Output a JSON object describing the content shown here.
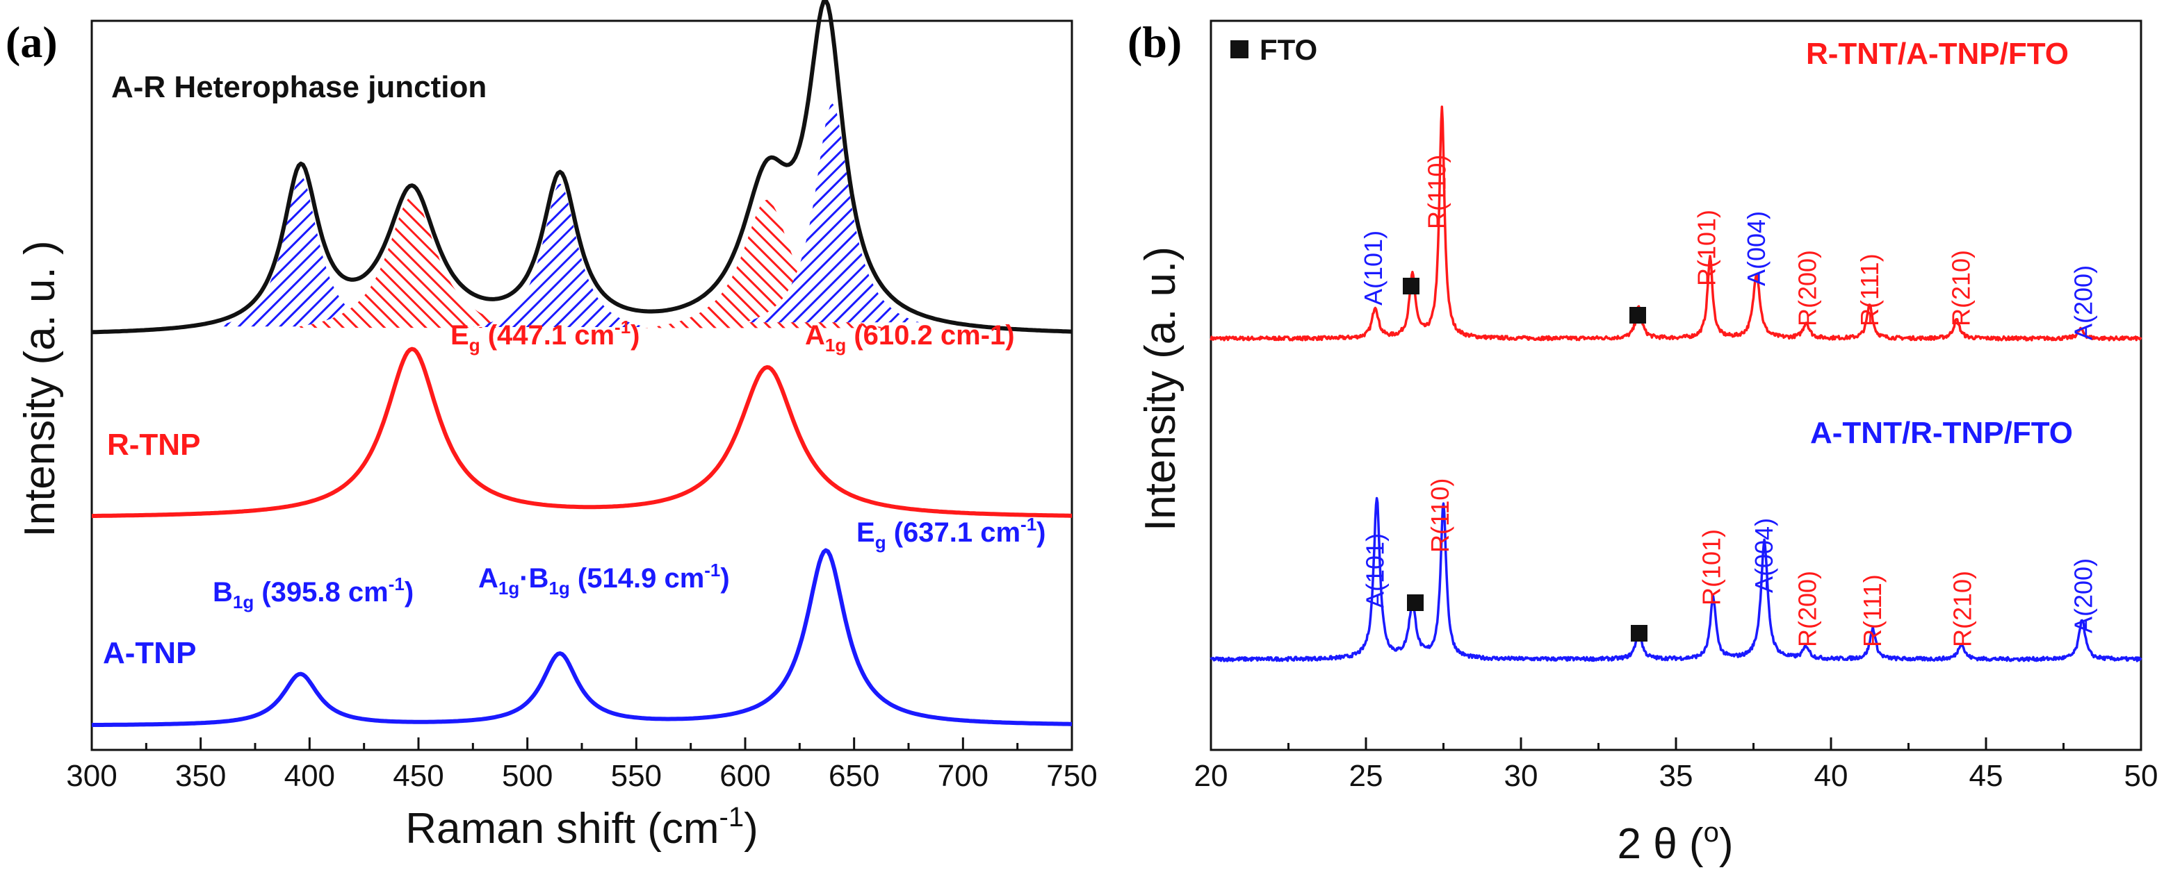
{
  "colors": {
    "black": "#111111",
    "red": "#ff1a1a",
    "blue": "#1a1aff"
  },
  "chart_data": [
    {
      "panel": "(a)",
      "type": "line",
      "title": "A-R Heterophase junction",
      "xlabel": "Raman shift (cm",
      "xlabel_sup": "-1",
      "xlabel_close": ")",
      "ylabel": "Intensity (a. u. )",
      "xlim": [
        300,
        750
      ],
      "ylim": [
        0,
        1
      ],
      "xticks": [
        "300",
        "350",
        "400",
        "450",
        "500",
        "550",
        "600",
        "650",
        "700",
        "750"
      ],
      "series": [
        {
          "name": "A-R",
          "color": "#111111",
          "peaks": [
            [
              396,
              1,
              10
            ],
            [
              447,
              0.87,
              14
            ],
            [
              515,
              0.95,
              10
            ],
            [
              610,
              0.85,
              14
            ],
            [
              637,
              1.9,
              10
            ]
          ],
          "base": 0.035,
          "offset": 0.56,
          "scale": 0.22
        },
        {
          "name": "R-TNP",
          "color": "#ff1a1a",
          "peaks": [
            [
              447.1,
              2.3,
              15
            ],
            [
              610.2,
              2.05,
              16
            ]
          ],
          "base": 0.08,
          "offset": 0.31,
          "scale": 0.1
        },
        {
          "name": "A-TNP",
          "color": "#1a1aff",
          "peaks": [
            [
              395.8,
              0.7,
              10
            ],
            [
              514.9,
              0.97,
              10
            ],
            [
              637.1,
              2.4,
              11
            ]
          ],
          "base": 0.03,
          "offset": 0.03,
          "scale": 0.1
        }
      ],
      "fills": [
        {
          "center": 396,
          "height": 1,
          "width": 10,
          "color": "#1a1aff"
        },
        {
          "center": 447,
          "height": 0.87,
          "width": 14,
          "color": "#ff1a1a"
        },
        {
          "center": 515,
          "height": 0.95,
          "width": 10,
          "color": "#1a1aff"
        },
        {
          "center": 610,
          "height": 0.85,
          "width": 14,
          "color": "#ff1a1a"
        },
        {
          "center": 640,
          "height": 1.45,
          "width": 10,
          "color": "#1a1aff"
        }
      ],
      "annotations": {
        "r_tnp": "R-TNP",
        "a_tnp": "A-TNP",
        "eg_red": {
          "main": "E",
          "sub": "g",
          "text": " (447.1 cm",
          "sup": "-1",
          "close": ")"
        },
        "a1g_red": {
          "main": "A",
          "sub": "1g",
          "text": " (610.2 cm-1)"
        },
        "b1g": {
          "main": "B",
          "sub": "1g",
          "text": " (395.8 cm",
          "sup": "-1",
          "close": ")"
        },
        "a1gb1g": {
          "main": "A",
          "sub1": "1g",
          "mid": "·B",
          "sub2": "1g",
          "text": " (514.9 cm",
          "sup": "-1",
          "close": ")"
        },
        "eg_blue": {
          "main": "E",
          "sub": "g",
          "text": " (637.1 cm",
          "sup": "-1",
          "close": ")"
        }
      }
    },
    {
      "panel": "(b)",
      "type": "line",
      "legend": "FTO",
      "xlabel": "2 θ (",
      "xlabel_sup": "o",
      "xlabel_close": ")",
      "ylabel": "Intensity (a. u.)",
      "xlim": [
        20,
        50
      ],
      "ylim": [
        0,
        1
      ],
      "xticks": [
        "20",
        "25",
        "30",
        "35",
        "40",
        "45",
        "50"
      ],
      "series": [
        {
          "name": "R-TNT/A-TNP/FTO",
          "color": "#ff1a1a",
          "offset": 0.56,
          "scale": 0.085,
          "base": 0.05,
          "peaks": [
            [
              25.3,
              0.5,
              0.12
            ],
            [
              26.5,
              1.0,
              0.12
            ],
            [
              27.45,
              3.7,
              0.1
            ],
            [
              33.8,
              0.5,
              0.12
            ],
            [
              36.1,
              1.3,
              0.1
            ],
            [
              37.6,
              1.05,
              0.13
            ],
            [
              39.2,
              0.25,
              0.12
            ],
            [
              41.25,
              0.55,
              0.11
            ],
            [
              44.05,
              0.3,
              0.12
            ],
            [
              48.05,
              0.15,
              0.12
            ]
          ]
        },
        {
          "name": "A-TNT/R-TNP/FTO",
          "color": "#1a1aff",
          "offset": 0.12,
          "scale": 0.085,
          "base": 0.05,
          "peaks": [
            [
              25.35,
              2.6,
              0.12
            ],
            [
              26.5,
              0.85,
              0.14
            ],
            [
              27.5,
              2.5,
              0.11
            ],
            [
              33.8,
              0.45,
              0.12
            ],
            [
              36.2,
              1.0,
              0.11
            ],
            [
              37.85,
              1.9,
              0.13
            ],
            [
              39.2,
              0.2,
              0.12
            ],
            [
              41.35,
              0.5,
              0.11
            ],
            [
              44.2,
              0.25,
              0.12
            ],
            [
              48.1,
              0.65,
              0.12
            ]
          ]
        }
      ],
      "labels_top": [
        {
          "text": "A(101)",
          "color": "blue"
        },
        {
          "text": "R(110)",
          "color": "red"
        },
        {
          "text": "R(101)",
          "color": "red"
        },
        {
          "text": "A(004)",
          "color": "blue"
        },
        {
          "text": "R(200)",
          "color": "red"
        },
        {
          "text": "R(111)",
          "color": "red"
        },
        {
          "text": "R(210)",
          "color": "red"
        },
        {
          "text": "A(200)",
          "color": "blue"
        }
      ],
      "labels_bottom": [
        {
          "text": "A(101)",
          "color": "blue"
        },
        {
          "text": "R(110)",
          "color": "red"
        },
        {
          "text": "R(101)",
          "color": "red"
        },
        {
          "text": "A(004)",
          "color": "blue"
        },
        {
          "text": "R(200)",
          "color": "red"
        },
        {
          "text": "R(111)",
          "color": "red"
        },
        {
          "text": "R(210)",
          "color": "red"
        },
        {
          "text": "A(200)",
          "color": "blue"
        }
      ]
    }
  ]
}
